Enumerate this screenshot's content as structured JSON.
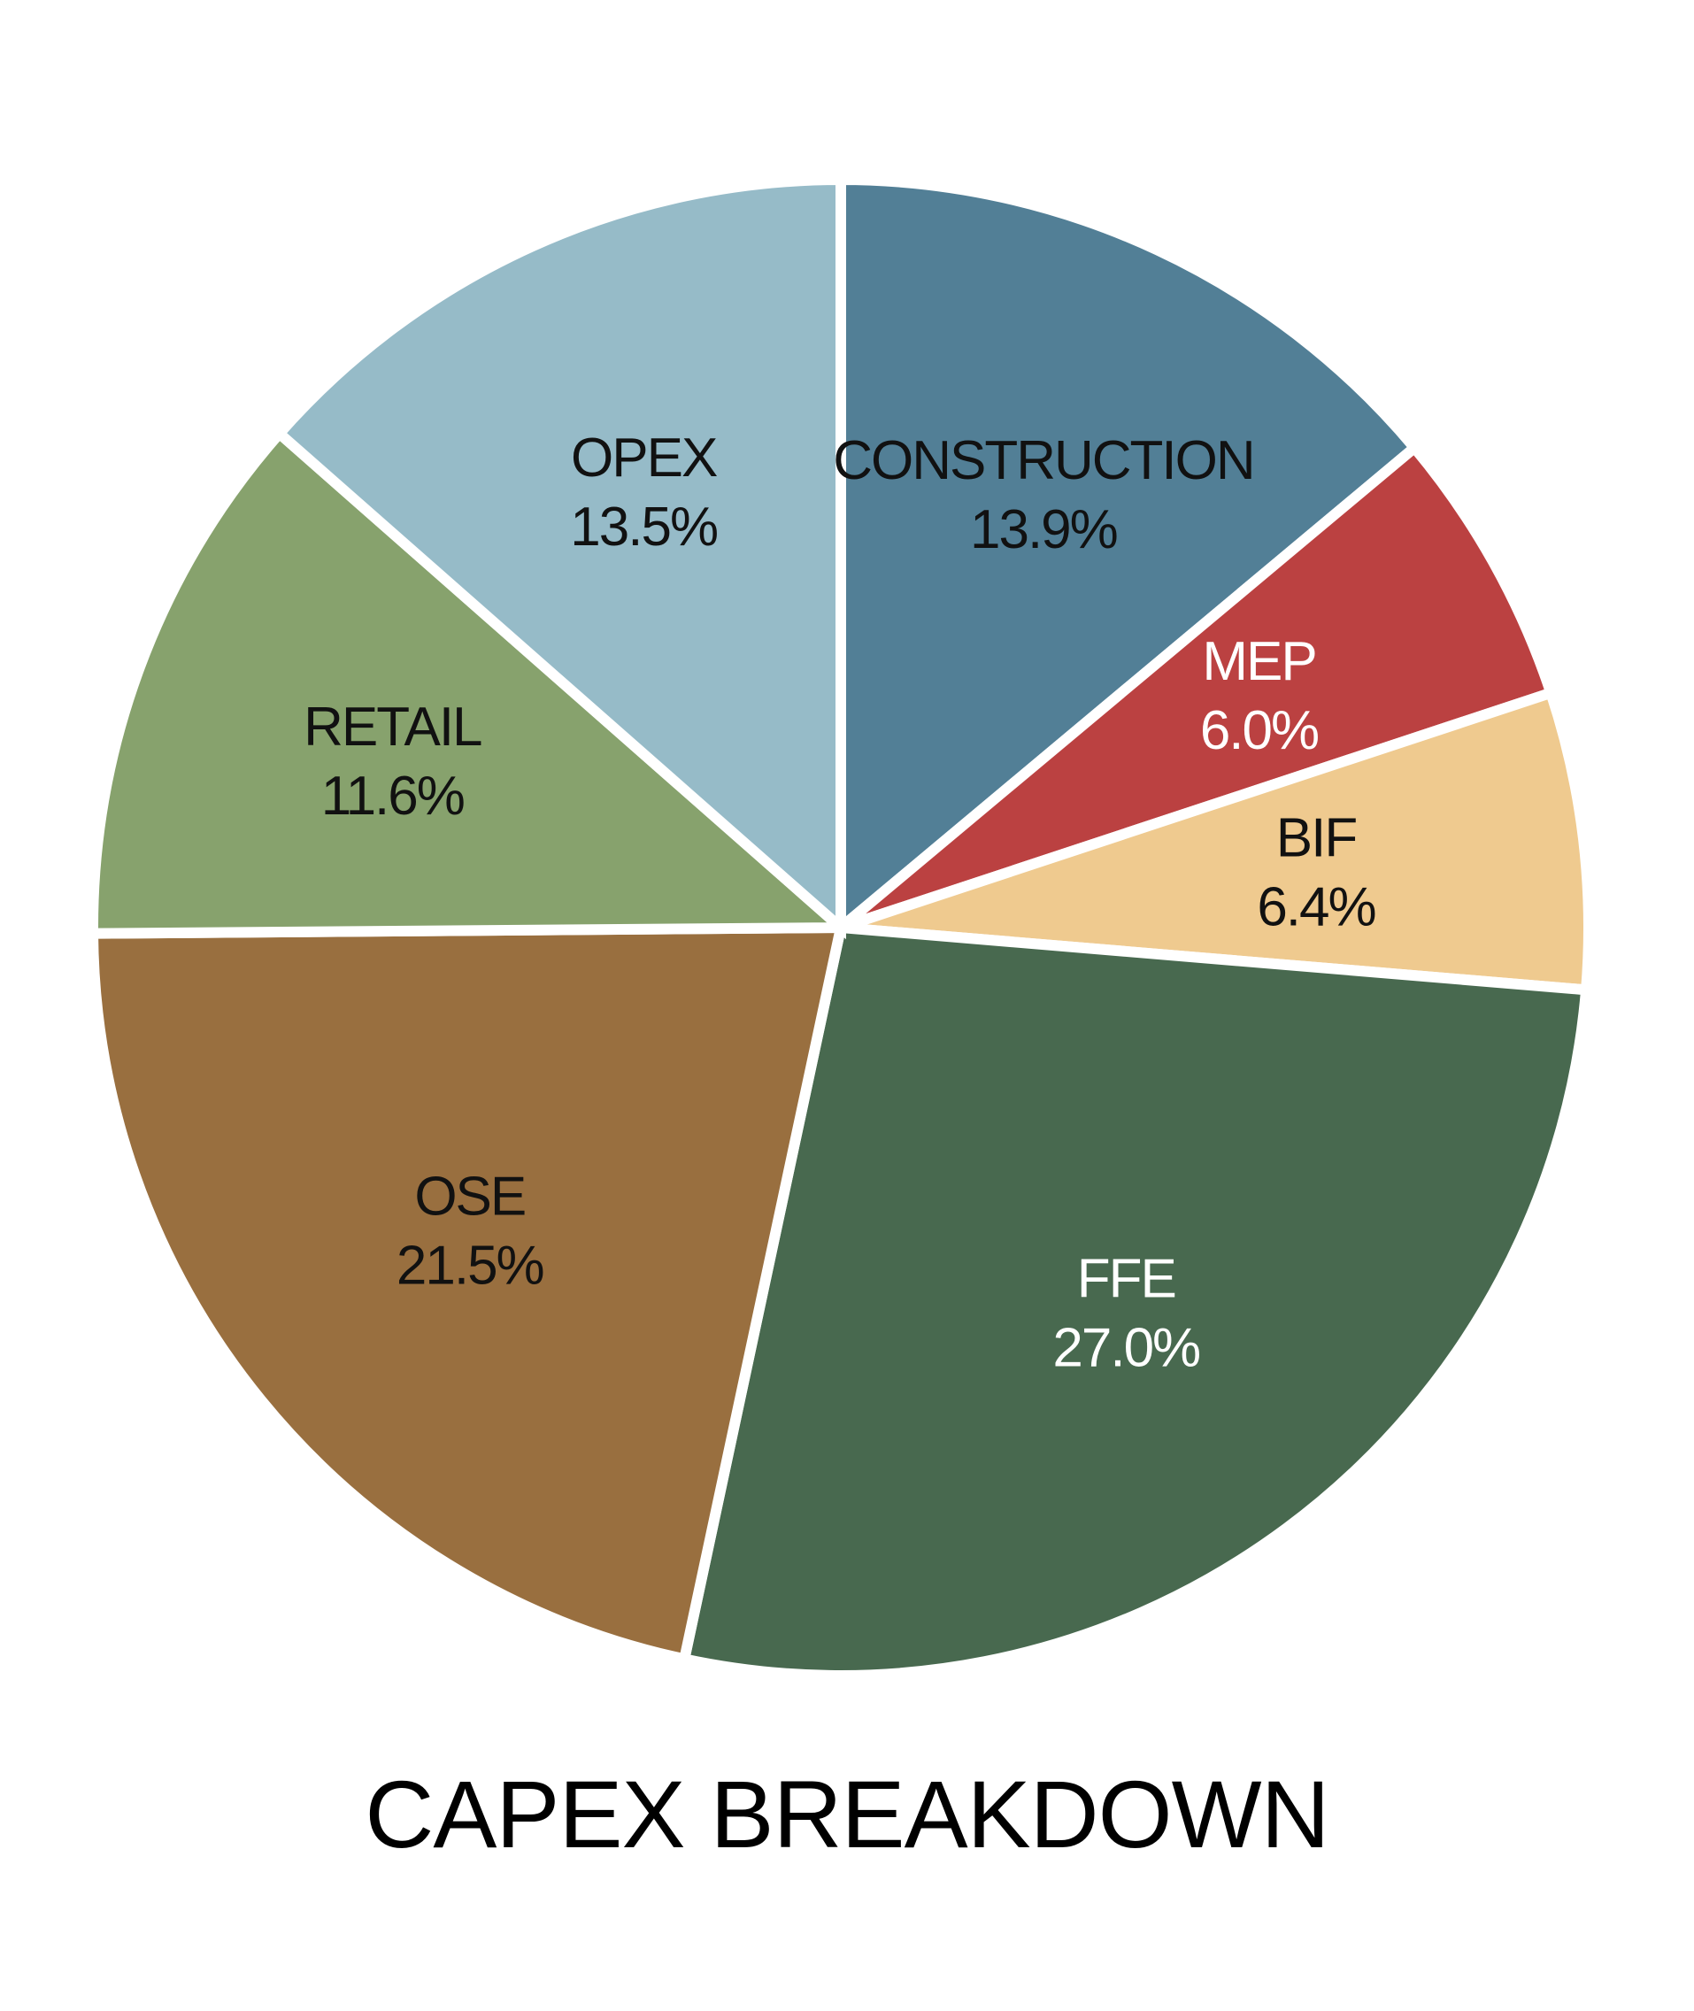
{
  "chart_data": {
    "type": "pie",
    "title": "CAPEX BREAKDOWN",
    "start_angle_deg": 0,
    "direction": "clockwise",
    "slices": [
      {
        "label": "CONSTRUCTION",
        "value": 13.9,
        "value_label": "13.9%",
        "color": "#527f96",
        "text_color": "#111111"
      },
      {
        "label": "MEP",
        "value": 6.0,
        "value_label": "6.0%",
        "color": "#bb4141",
        "text_color": "#ffffff"
      },
      {
        "label": "BIF",
        "value": 6.4,
        "value_label": "6.4%",
        "color": "#efca8f",
        "text_color": "#111111"
      },
      {
        "label": "FFE",
        "value": 27.0,
        "value_label": "27.0%",
        "color": "#48694f",
        "text_color": "#ffffff"
      },
      {
        "label": "OSE",
        "value": 21.5,
        "value_label": "21.5%",
        "color": "#996f3f",
        "text_color": "#111111"
      },
      {
        "label": "RETAIL",
        "value": 11.6,
        "value_label": "11.6%",
        "color": "#87a26d",
        "text_color": "#111111"
      },
      {
        "label": "OPEX",
        "value": 13.5,
        "value_label": "13.5%",
        "color": "#96bbc8",
        "text_color": "#111111"
      }
    ]
  }
}
